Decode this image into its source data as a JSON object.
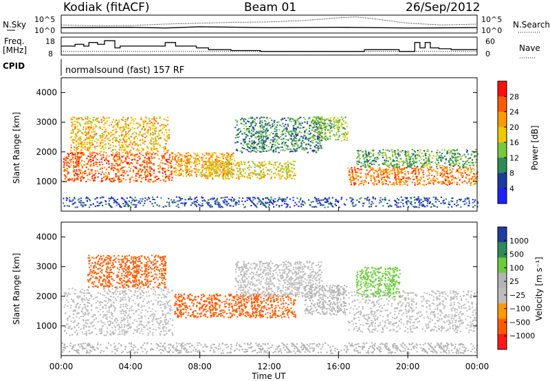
{
  "header": {
    "station": "Kodiak (fitACF)",
    "beam": "Beam 01",
    "date": "26/Sep/2012"
  },
  "noise_panel": {
    "left_label": "N.Sky",
    "right_label": "N.Search",
    "left_ticks": [
      "10^5",
      "10^0"
    ],
    "right_ticks": [
      "10^5",
      "10^0"
    ]
  },
  "freq_panel": {
    "left_label_1": "Freq.",
    "left_label_2": "[MHz]",
    "right_label": "Nave",
    "left_ticks": [
      "18",
      "8"
    ],
    "right_ticks": [
      "60",
      "0"
    ]
  },
  "cpid_panel": {
    "label": "CPID",
    "text": "normalsound (fast) 157 RF"
  },
  "power_panel": {
    "ylabel": "Slant Range [km]",
    "yticks": [
      "4000",
      "3000",
      "2000",
      "1000"
    ],
    "colorbar_label": "Power [dB]",
    "colorbar_ticks": [
      "28",
      "24",
      "20",
      "16",
      "12",
      "8",
      "4"
    ],
    "colorbar_colors": [
      "#ff1010",
      "#ff5a00",
      "#ff9a00",
      "#f0c800",
      "#7ac83c",
      "#2e8b57",
      "#1e3c9e",
      "#2020ff"
    ]
  },
  "velocity_panel": {
    "ylabel": "Slant Range [km]",
    "yticks": [
      "4000",
      "3000",
      "2000",
      "1000"
    ],
    "colorbar_label": "Velocity [m s⁻¹]",
    "colorbar_ticks": [
      "1000",
      "500",
      "100",
      "25",
      "−25",
      "−100",
      "−500",
      "−1000"
    ],
    "colorbar_colors": [
      "#1e3c9e",
      "#2e8b57",
      "#6ccc3c",
      "#b4b4b4",
      "#bdbdbd",
      "#ff9a00",
      "#ff5a00",
      "#ff1a1a"
    ]
  },
  "time_axis": {
    "ticks": [
      "00:00",
      "04:00",
      "08:00",
      "12:00",
      "16:00",
      "20:00",
      "00:00"
    ],
    "label": "Time UT"
  },
  "chart_data": {
    "type": "heatmap",
    "x_range_hours": [
      0,
      24
    ],
    "y_range_km": [
      0,
      4500
    ],
    "cpid_mode": "normalsound (fast) 157 RF",
    "freq_segments_mhz": [
      {
        "start": 0.0,
        "end": 0.8,
        "value": 13
      },
      {
        "start": 0.8,
        "end": 1.3,
        "value": 14
      },
      {
        "start": 1.3,
        "end": 1.6,
        "value": 13
      },
      {
        "start": 1.6,
        "end": 2.1,
        "value": 15
      },
      {
        "start": 2.1,
        "end": 2.5,
        "value": 14
      },
      {
        "start": 2.5,
        "end": 3.1,
        "value": 16
      },
      {
        "start": 3.1,
        "end": 3.4,
        "value": 12
      },
      {
        "start": 3.4,
        "end": 6.0,
        "value": 13
      },
      {
        "start": 6.0,
        "end": 6.6,
        "value": 15
      },
      {
        "start": 6.6,
        "end": 7.8,
        "value": 13
      },
      {
        "start": 7.8,
        "end": 8.5,
        "value": 12
      },
      {
        "start": 8.5,
        "end": 9.8,
        "value": 11
      },
      {
        "start": 9.8,
        "end": 11.5,
        "value": 10.5
      },
      {
        "start": 11.5,
        "end": 17.5,
        "value": 10
      },
      {
        "start": 17.5,
        "end": 19.5,
        "value": 11
      },
      {
        "start": 19.5,
        "end": 20.4,
        "value": 10
      },
      {
        "start": 20.4,
        "end": 20.7,
        "value": 15
      },
      {
        "start": 20.7,
        "end": 21.0,
        "value": 12
      },
      {
        "start": 21.0,
        "end": 21.3,
        "value": 15
      },
      {
        "start": 21.3,
        "end": 21.8,
        "value": 12
      },
      {
        "start": 21.8,
        "end": 22.5,
        "value": 11.5
      },
      {
        "start": 22.5,
        "end": 24.0,
        "value": 11
      }
    ],
    "nave_level": 12,
    "noise_search_profile": [
      {
        "t": 0,
        "v": 0.45
      },
      {
        "t": 2,
        "v": 0.4
      },
      {
        "t": 4,
        "v": 0.42
      },
      {
        "t": 6,
        "v": 0.5
      },
      {
        "t": 8,
        "v": 0.55
      },
      {
        "t": 10,
        "v": 0.6
      },
      {
        "t": 12,
        "v": 0.62
      },
      {
        "t": 14,
        "v": 0.7
      },
      {
        "t": 16,
        "v": 0.85
      },
      {
        "t": 17,
        "v": 0.9
      },
      {
        "t": 18,
        "v": 0.8
      },
      {
        "t": 20,
        "v": 0.55
      },
      {
        "t": 22,
        "v": 0.45
      },
      {
        "t": 24,
        "v": 0.5
      }
    ],
    "noise_sky_profile": [
      {
        "t": 0,
        "v": 0.3
      },
      {
        "t": 4,
        "v": 0.32
      },
      {
        "t": 6,
        "v": 0.28
      },
      {
        "t": 8,
        "v": 0.35
      },
      {
        "t": 12,
        "v": 0.3
      },
      {
        "t": 16,
        "v": 0.32
      },
      {
        "t": 20,
        "v": 0.28
      },
      {
        "t": 24,
        "v": 0.3
      }
    ],
    "power_scatter_regions": [
      {
        "t0": 0.1,
        "t1": 6.4,
        "r0": 1000,
        "r1": 2000,
        "value": 26
      },
      {
        "t0": 0.5,
        "t1": 6.2,
        "r0": 2000,
        "r1": 3200,
        "value": 20
      },
      {
        "t0": 6.4,
        "t1": 10.0,
        "r0": 1200,
        "r1": 2000,
        "value": 22
      },
      {
        "t0": 8.0,
        "t1": 13.5,
        "r0": 1100,
        "r1": 1700,
        "value": 18
      },
      {
        "t0": 10.0,
        "t1": 15.0,
        "r0": 2000,
        "r1": 3200,
        "value": 10
      },
      {
        "t0": 14.5,
        "t1": 16.5,
        "r0": 2400,
        "r1": 3200,
        "value": 14
      },
      {
        "t0": 16.5,
        "t1": 24.0,
        "r0": 900,
        "r1": 1500,
        "value": 24
      },
      {
        "t0": 17.0,
        "t1": 24.0,
        "r0": 1500,
        "r1": 2100,
        "value": 12
      },
      {
        "t0": 0.0,
        "t1": 24.0,
        "r0": 150,
        "r1": 500,
        "value": 6
      }
    ],
    "velocity_scatter_regions": [
      {
        "t0": 0.1,
        "t1": 6.4,
        "r0": 700,
        "r1": 2300,
        "value": 0
      },
      {
        "t0": 1.5,
        "t1": 6.0,
        "r0": 2300,
        "r1": 3400,
        "value": -200
      },
      {
        "t0": 6.5,
        "t1": 13.5,
        "r0": 1300,
        "r1": 2100,
        "value": -300
      },
      {
        "t0": 10.0,
        "t1": 15.0,
        "r0": 2000,
        "r1": 3200,
        "value": 0
      },
      {
        "t0": 14.0,
        "t1": 16.5,
        "r0": 1400,
        "r1": 2400,
        "value": 60
      },
      {
        "t0": 16.5,
        "t1": 24.0,
        "r0": 800,
        "r1": 2200,
        "value": 0
      },
      {
        "t0": 17.0,
        "t1": 19.5,
        "r0": 2000,
        "r1": 3000,
        "value": 150
      },
      {
        "t0": 0.0,
        "t1": 24.0,
        "r0": 100,
        "r1": 450,
        "value": 80
      }
    ]
  }
}
